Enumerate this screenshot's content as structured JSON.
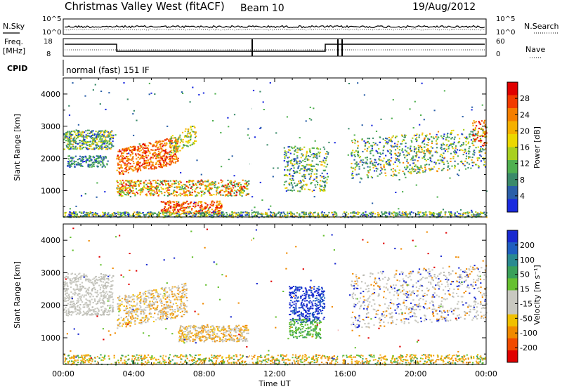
{
  "header": {
    "station": "Christmas Valley West (fitACF)",
    "beam": "Beam 10",
    "date": "19/Aug/2012",
    "cpid_label": "CPID",
    "cpid_value": "normal (fast) 151 IF"
  },
  "noise_panel": {
    "left_label": "N.Sky",
    "right_label": "N.Search",
    "left_ticks": [
      "10^5",
      "10^0"
    ],
    "right_ticks": [
      "10^5",
      "10^0"
    ]
  },
  "freq_panel": {
    "left_label_1": "Freq.",
    "left_label_2": "[MHz]",
    "right_label": "Nave",
    "left_ticks": [
      "18",
      "8"
    ],
    "right_ticks": [
      "60",
      "0"
    ]
  },
  "chart_data": [
    {
      "type": "heatmap",
      "name": "power",
      "ylabel": "Slant Range [km]",
      "yticks": [
        1000,
        2000,
        3000,
        4000
      ],
      "ylim": [
        180,
        4500
      ],
      "xlim": [
        0,
        24
      ],
      "colorbar": {
        "label": "Power [dB]",
        "ticks": [
          "28",
          "24",
          "20",
          "16",
          "12",
          "8",
          "4"
        ],
        "colors": [
          "#e00000",
          "#f23a00",
          "#f57e00",
          "#f5b000",
          "#ecd800",
          "#a8d020",
          "#50b050",
          "#3a8a6a",
          "#2a5fa8",
          "#1a2adf"
        ]
      }
    },
    {
      "type": "heatmap",
      "name": "velocity",
      "xlabel": "Time UT",
      "ylabel": "Slant Range [km]",
      "yticks": [
        1000,
        2000,
        3000,
        4000
      ],
      "ylim": [
        180,
        4500
      ],
      "xlim": [
        0,
        24
      ],
      "xticks": [
        "00:00",
        "04:00",
        "08:00",
        "12:00",
        "16:00",
        "20:00",
        "00:00"
      ],
      "colorbar": {
        "label": "Velocity [m s⁻¹]",
        "ticks": [
          "200",
          "100",
          "50",
          "15",
          "-15",
          "-50",
          "-100",
          "-200"
        ],
        "colors": [
          "#1a2ad0",
          "#1f5fc0",
          "#2a8a90",
          "#3aa05a",
          "#66c030",
          "#c8c8c0",
          "#c8c8c0",
          "#f0c000",
          "#f08a00",
          "#f04a00",
          "#e00000"
        ]
      }
    }
  ],
  "colors": {
    "power_low": "#1a2adf",
    "power_mid": "#50b050",
    "power_high": "#e00000",
    "velocity_gray": "#c8c8c0",
    "velocity_orange": "#f0a020",
    "velocity_blue": "#1a2ad0"
  }
}
